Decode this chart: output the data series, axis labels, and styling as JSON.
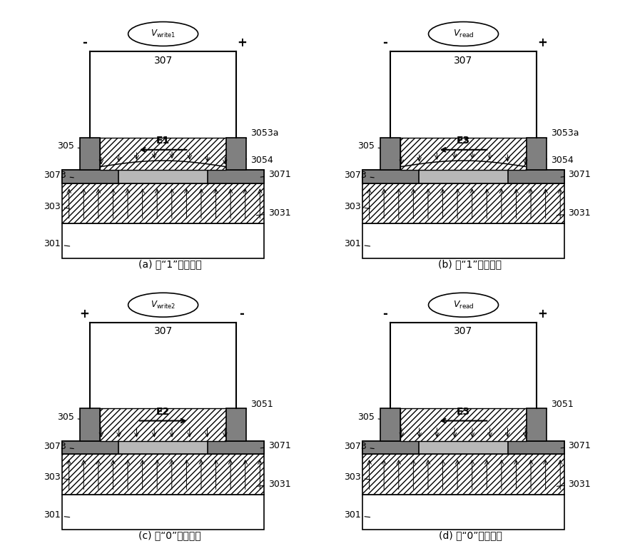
{
  "bg_color": "#ffffff",
  "gray_light": "#b8b8b8",
  "gray_dark": "#808080",
  "panels": [
    {
      "label": "(a) 写“1”操作过程",
      "voltage_label": "V_write1",
      "e_label": "E1",
      "e_arrow": "left",
      "polarity": [
        "-",
        "+"
      ],
      "has_curve": true,
      "has_top_cap": true,
      "col": 0,
      "row": 0
    },
    {
      "label": "(b) 读“1”操作过程",
      "voltage_label": "V_read",
      "e_label": "E3",
      "e_arrow": "left",
      "polarity": [
        "-",
        "+"
      ],
      "has_curve": true,
      "has_top_cap": true,
      "col": 1,
      "row": 0
    },
    {
      "label": "(c) 写“0”操作过程",
      "voltage_label": "V_write2",
      "e_label": "E2",
      "e_arrow": "right",
      "polarity": [
        "+",
        "-"
      ],
      "has_curve": false,
      "has_top_cap": false,
      "col": 0,
      "row": 1
    },
    {
      "label": "(d) 读“0”操作过程",
      "voltage_label": "V_read",
      "e_label": "E3",
      "e_arrow": "left",
      "polarity": [
        "-",
        "+"
      ],
      "has_curve": false,
      "has_top_cap": false,
      "col": 1,
      "row": 1
    }
  ]
}
